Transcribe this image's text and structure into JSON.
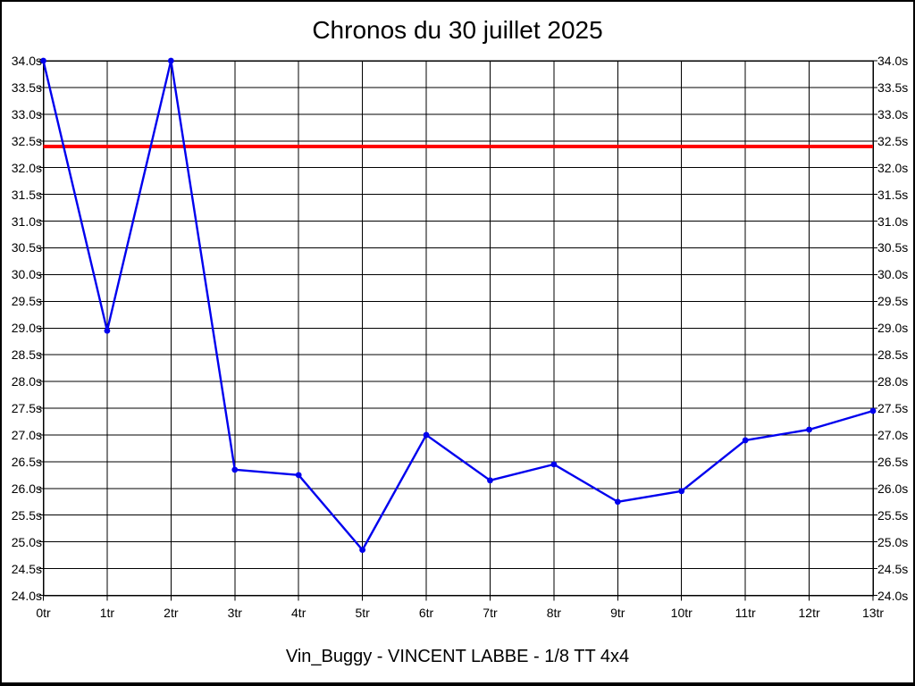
{
  "chart_data": {
    "type": "line",
    "title": "Chronos du 30 juillet 2025",
    "subtitle": "Vin_Buggy - VINCENT LABBE - 1/8 TT 4x4",
    "categories": [
      "0tr",
      "1tr",
      "2tr",
      "3tr",
      "4tr",
      "5tr",
      "6tr",
      "7tr",
      "8tr",
      "9tr",
      "10tr",
      "11tr",
      "12tr",
      "13tr"
    ],
    "series": [
      {
        "name": "lap-times",
        "color": "#0000ee",
        "values": [
          34.0,
          28.95,
          34.0,
          26.35,
          26.25,
          24.85,
          27.0,
          26.15,
          26.45,
          25.75,
          25.95,
          26.9,
          27.1,
          27.45
        ]
      }
    ],
    "reference_line": {
      "value": 32.4,
      "color": "#ff0000"
    },
    "ylim": [
      24.0,
      34.0
    ],
    "ytick_step": 0.5,
    "ytick_labels": [
      "34.0s",
      "33.5s",
      "33.0s",
      "32.5s",
      "32.0s",
      "31.5s",
      "31.0s",
      "30.5s",
      "30.0s",
      "29.5s",
      "29.0s",
      "28.5s",
      "28.0s",
      "27.5s",
      "27.0s",
      "26.5s",
      "26.0s",
      "25.5s",
      "25.0s",
      "24.5s",
      "24.0s"
    ],
    "yunit": "s",
    "xlabel": "",
    "ylabel": "",
    "grid": true,
    "grid_color": "#000000",
    "axis_color": "#000000",
    "background": "#ffffff",
    "legend": "none"
  }
}
